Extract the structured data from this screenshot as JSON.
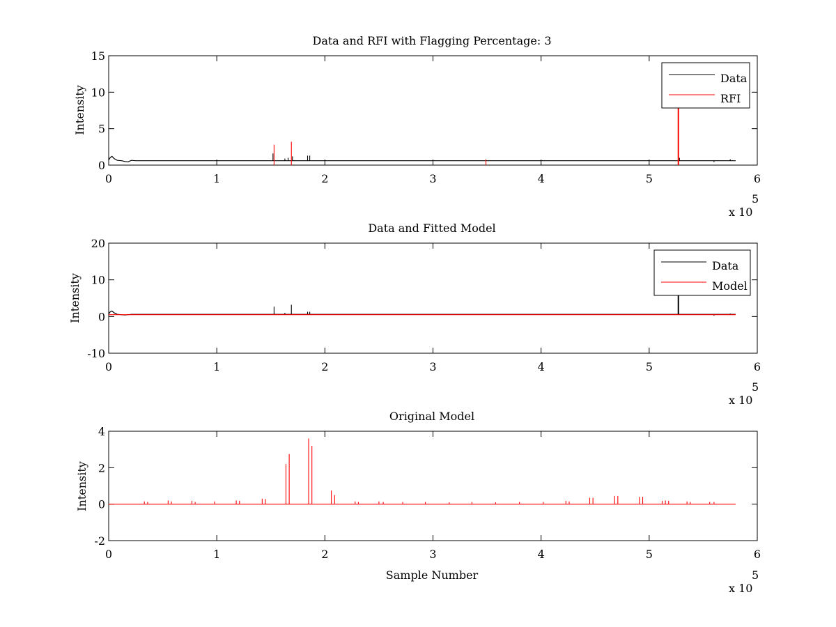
{
  "figure": {
    "background": "#ffffff"
  },
  "chart_data": [
    {
      "type": "line",
      "title": "Data and RFI with Flagging Percentage: 3",
      "xlabel": "",
      "ylabel": "Intensity",
      "xlim": [
        0,
        600000
      ],
      "ylim": [
        0,
        15
      ],
      "xticks": [
        "0",
        "1",
        "2",
        "3",
        "4",
        "5",
        "6"
      ],
      "yticks": [
        "0",
        "5",
        "10",
        "15"
      ],
      "x_exponent_label": "x 10",
      "x_exponent_power": "5",
      "legend_position": "top-right",
      "series": [
        {
          "name": "Data",
          "color": "#000000",
          "baseline": 0.6,
          "points": [
            [
              0,
              0.7
            ],
            [
              1500,
              1.05
            ],
            [
              3000,
              1.2
            ],
            [
              5000,
              0.9
            ],
            [
              8000,
              0.65
            ],
            [
              12000,
              0.6
            ],
            [
              15000,
              0.5
            ],
            [
              18000,
              0.45
            ],
            [
              21000,
              0.65
            ],
            [
              25000,
              0.6
            ],
            [
              580000,
              0.6
            ]
          ],
          "spikes": [
            [
              152000,
              1.6
            ],
            [
              163000,
              0.9
            ],
            [
              166000,
              1.0
            ],
            [
              170000,
              1.2
            ],
            [
              184000,
              1.3
            ],
            [
              186000,
              1.3
            ],
            [
              528000,
              1.0
            ],
            [
              560000,
              0.4
            ],
            [
              575000,
              0.8
            ]
          ]
        },
        {
          "name": "RFI",
          "color": "#ff0000",
          "spikes": [
            [
              153000,
              2.8
            ],
            [
              169000,
              3.2
            ],
            [
              349000,
              0.8
            ],
            [
              527000,
              12.5
            ]
          ]
        }
      ]
    },
    {
      "type": "line",
      "title": "Data and Fitted Model",
      "xlabel": "",
      "ylabel": "Intensity",
      "xlim": [
        0,
        600000
      ],
      "ylim": [
        -10,
        20
      ],
      "xticks": [
        "0",
        "1",
        "2",
        "3",
        "4",
        "5",
        "6"
      ],
      "yticks": [
        "-10",
        "0",
        "10",
        "20"
      ],
      "x_exponent_label": "x 10",
      "x_exponent_power": "5",
      "legend_position": "top-right",
      "series": [
        {
          "name": "Data",
          "color": "#000000",
          "baseline": 0.6,
          "points": [
            [
              0,
              0.7
            ],
            [
              1500,
              1.3
            ],
            [
              3000,
              1.5
            ],
            [
              5000,
              1.0
            ],
            [
              8000,
              0.6
            ],
            [
              15000,
              0.4
            ],
            [
              21000,
              0.6
            ],
            [
              580000,
              0.6
            ]
          ],
          "spikes": [
            [
              153000,
              2.7
            ],
            [
              163000,
              1.0
            ],
            [
              169000,
              3.2
            ],
            [
              184000,
              1.3
            ],
            [
              186000,
              1.3
            ],
            [
              527000,
              12.5
            ],
            [
              560000,
              0.2
            ],
            [
              575000,
              0.8
            ]
          ]
        },
        {
          "name": "Model",
          "color": "#ff0000",
          "baseline": 0.5,
          "points": [
            [
              0,
              0.5
            ],
            [
              580000,
              0.5
            ]
          ],
          "spikes": []
        }
      ]
    },
    {
      "type": "line",
      "title": "Original Model",
      "xlabel": "Sample Number",
      "ylabel": "Intensity",
      "xlim": [
        0,
        600000
      ],
      "ylim": [
        -2,
        4
      ],
      "xticks": [
        "0",
        "1",
        "2",
        "3",
        "4",
        "5",
        "6"
      ],
      "yticks": [
        "-2",
        "0",
        "2",
        "4"
      ],
      "x_exponent_label": "x 10",
      "x_exponent_power": "5",
      "series": [
        {
          "name": "",
          "color": "#ff0000",
          "baseline": 0,
          "points": [
            [
              0,
              0
            ],
            [
              580000,
              0
            ]
          ],
          "spikes": [
            [
              33000,
              0.15
            ],
            [
              36000,
              0.12
            ],
            [
              55000,
              0.2
            ],
            [
              58000,
              0.15
            ],
            [
              77000,
              0.18
            ],
            [
              80000,
              0.12
            ],
            [
              98000,
              0.15
            ],
            [
              118000,
              0.2
            ],
            [
              121000,
              0.18
            ],
            [
              142000,
              0.3
            ],
            [
              145000,
              0.28
            ],
            [
              164000,
              2.2
            ],
            [
              167000,
              2.75
            ],
            [
              185000,
              3.6
            ],
            [
              188000,
              3.2
            ],
            [
              206000,
              0.75
            ],
            [
              209000,
              0.5
            ],
            [
              228000,
              0.15
            ],
            [
              231000,
              0.12
            ],
            [
              250000,
              0.15
            ],
            [
              254000,
              0.12
            ],
            [
              272000,
              0.12
            ],
            [
              293000,
              0.12
            ],
            [
              315000,
              0.1
            ],
            [
              336000,
              0.12
            ],
            [
              358000,
              0.1
            ],
            [
              380000,
              0.12
            ],
            [
              402000,
              0.12
            ],
            [
              423000,
              0.18
            ],
            [
              426000,
              0.15
            ],
            [
              445000,
              0.35
            ],
            [
              448000,
              0.35
            ],
            [
              468000,
              0.45
            ],
            [
              471000,
              0.45
            ],
            [
              491000,
              0.4
            ],
            [
              494000,
              0.4
            ],
            [
              512000,
              0.18
            ],
            [
              515000,
              0.2
            ],
            [
              518000,
              0.18
            ],
            [
              535000,
              0.15
            ],
            [
              538000,
              0.12
            ],
            [
              556000,
              0.12
            ],
            [
              560000,
              0.12
            ]
          ]
        }
      ]
    }
  ]
}
